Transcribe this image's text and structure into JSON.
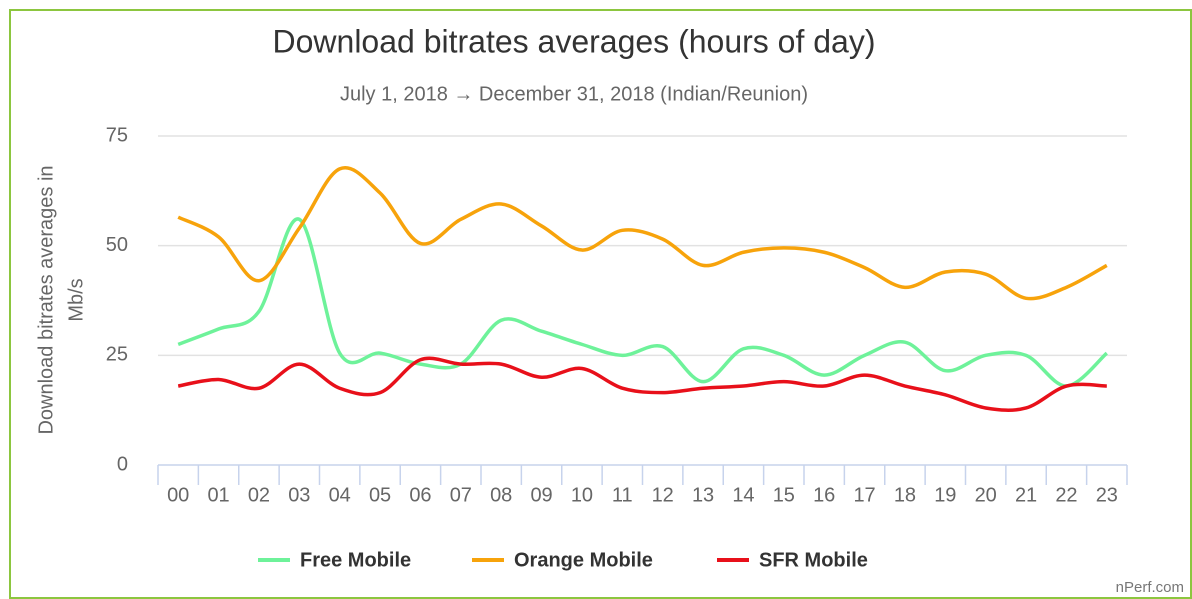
{
  "chart_data": {
    "type": "line",
    "title": "Download bitrates averages (hours of day)",
    "subtitle": "July 1, 2018 → December 31, 2018 (Indian/Reunion)",
    "y_label": [
      "Download bitrates averages in",
      "Mb/s"
    ],
    "watermark": "nPerf.com",
    "categories": [
      "00",
      "01",
      "02",
      "03",
      "04",
      "05",
      "06",
      "07",
      "08",
      "09",
      "10",
      "11",
      "12",
      "13",
      "14",
      "15",
      "16",
      "17",
      "18",
      "19",
      "20",
      "21",
      "22",
      "23"
    ],
    "ylim": [
      0,
      75
    ],
    "yticks": [
      0,
      25,
      50,
      75
    ],
    "grid": true,
    "legend": "bottom",
    "series": [
      {
        "name": "Free Mobile",
        "color": "#6ef29a",
        "values": [
          27.5,
          31,
          35,
          56,
          25.5,
          25.5,
          23,
          23,
          33,
          30.5,
          27.5,
          25,
          27,
          19,
          26.5,
          25,
          20.5,
          25,
          28,
          21.5,
          25,
          25,
          18,
          25.5
        ]
      },
      {
        "name": "Orange Mobile",
        "color": "#f7a30b",
        "values": [
          56.5,
          52,
          42,
          54,
          67.5,
          62,
          50.5,
          56,
          59.5,
          54.5,
          49,
          53.5,
          51.5,
          45.5,
          48.5,
          49.5,
          48.5,
          45,
          40.5,
          44,
          43.5,
          38,
          40.5,
          45.5
        ]
      },
      {
        "name": "SFR Mobile",
        "color": "#e8101a",
        "values": [
          18,
          19.5,
          17.5,
          23,
          17.5,
          16.5,
          24,
          23,
          23,
          20,
          22,
          17.5,
          16.5,
          17.5,
          18,
          19,
          18,
          20.5,
          18,
          16,
          13,
          13,
          18,
          18
        ]
      }
    ]
  }
}
